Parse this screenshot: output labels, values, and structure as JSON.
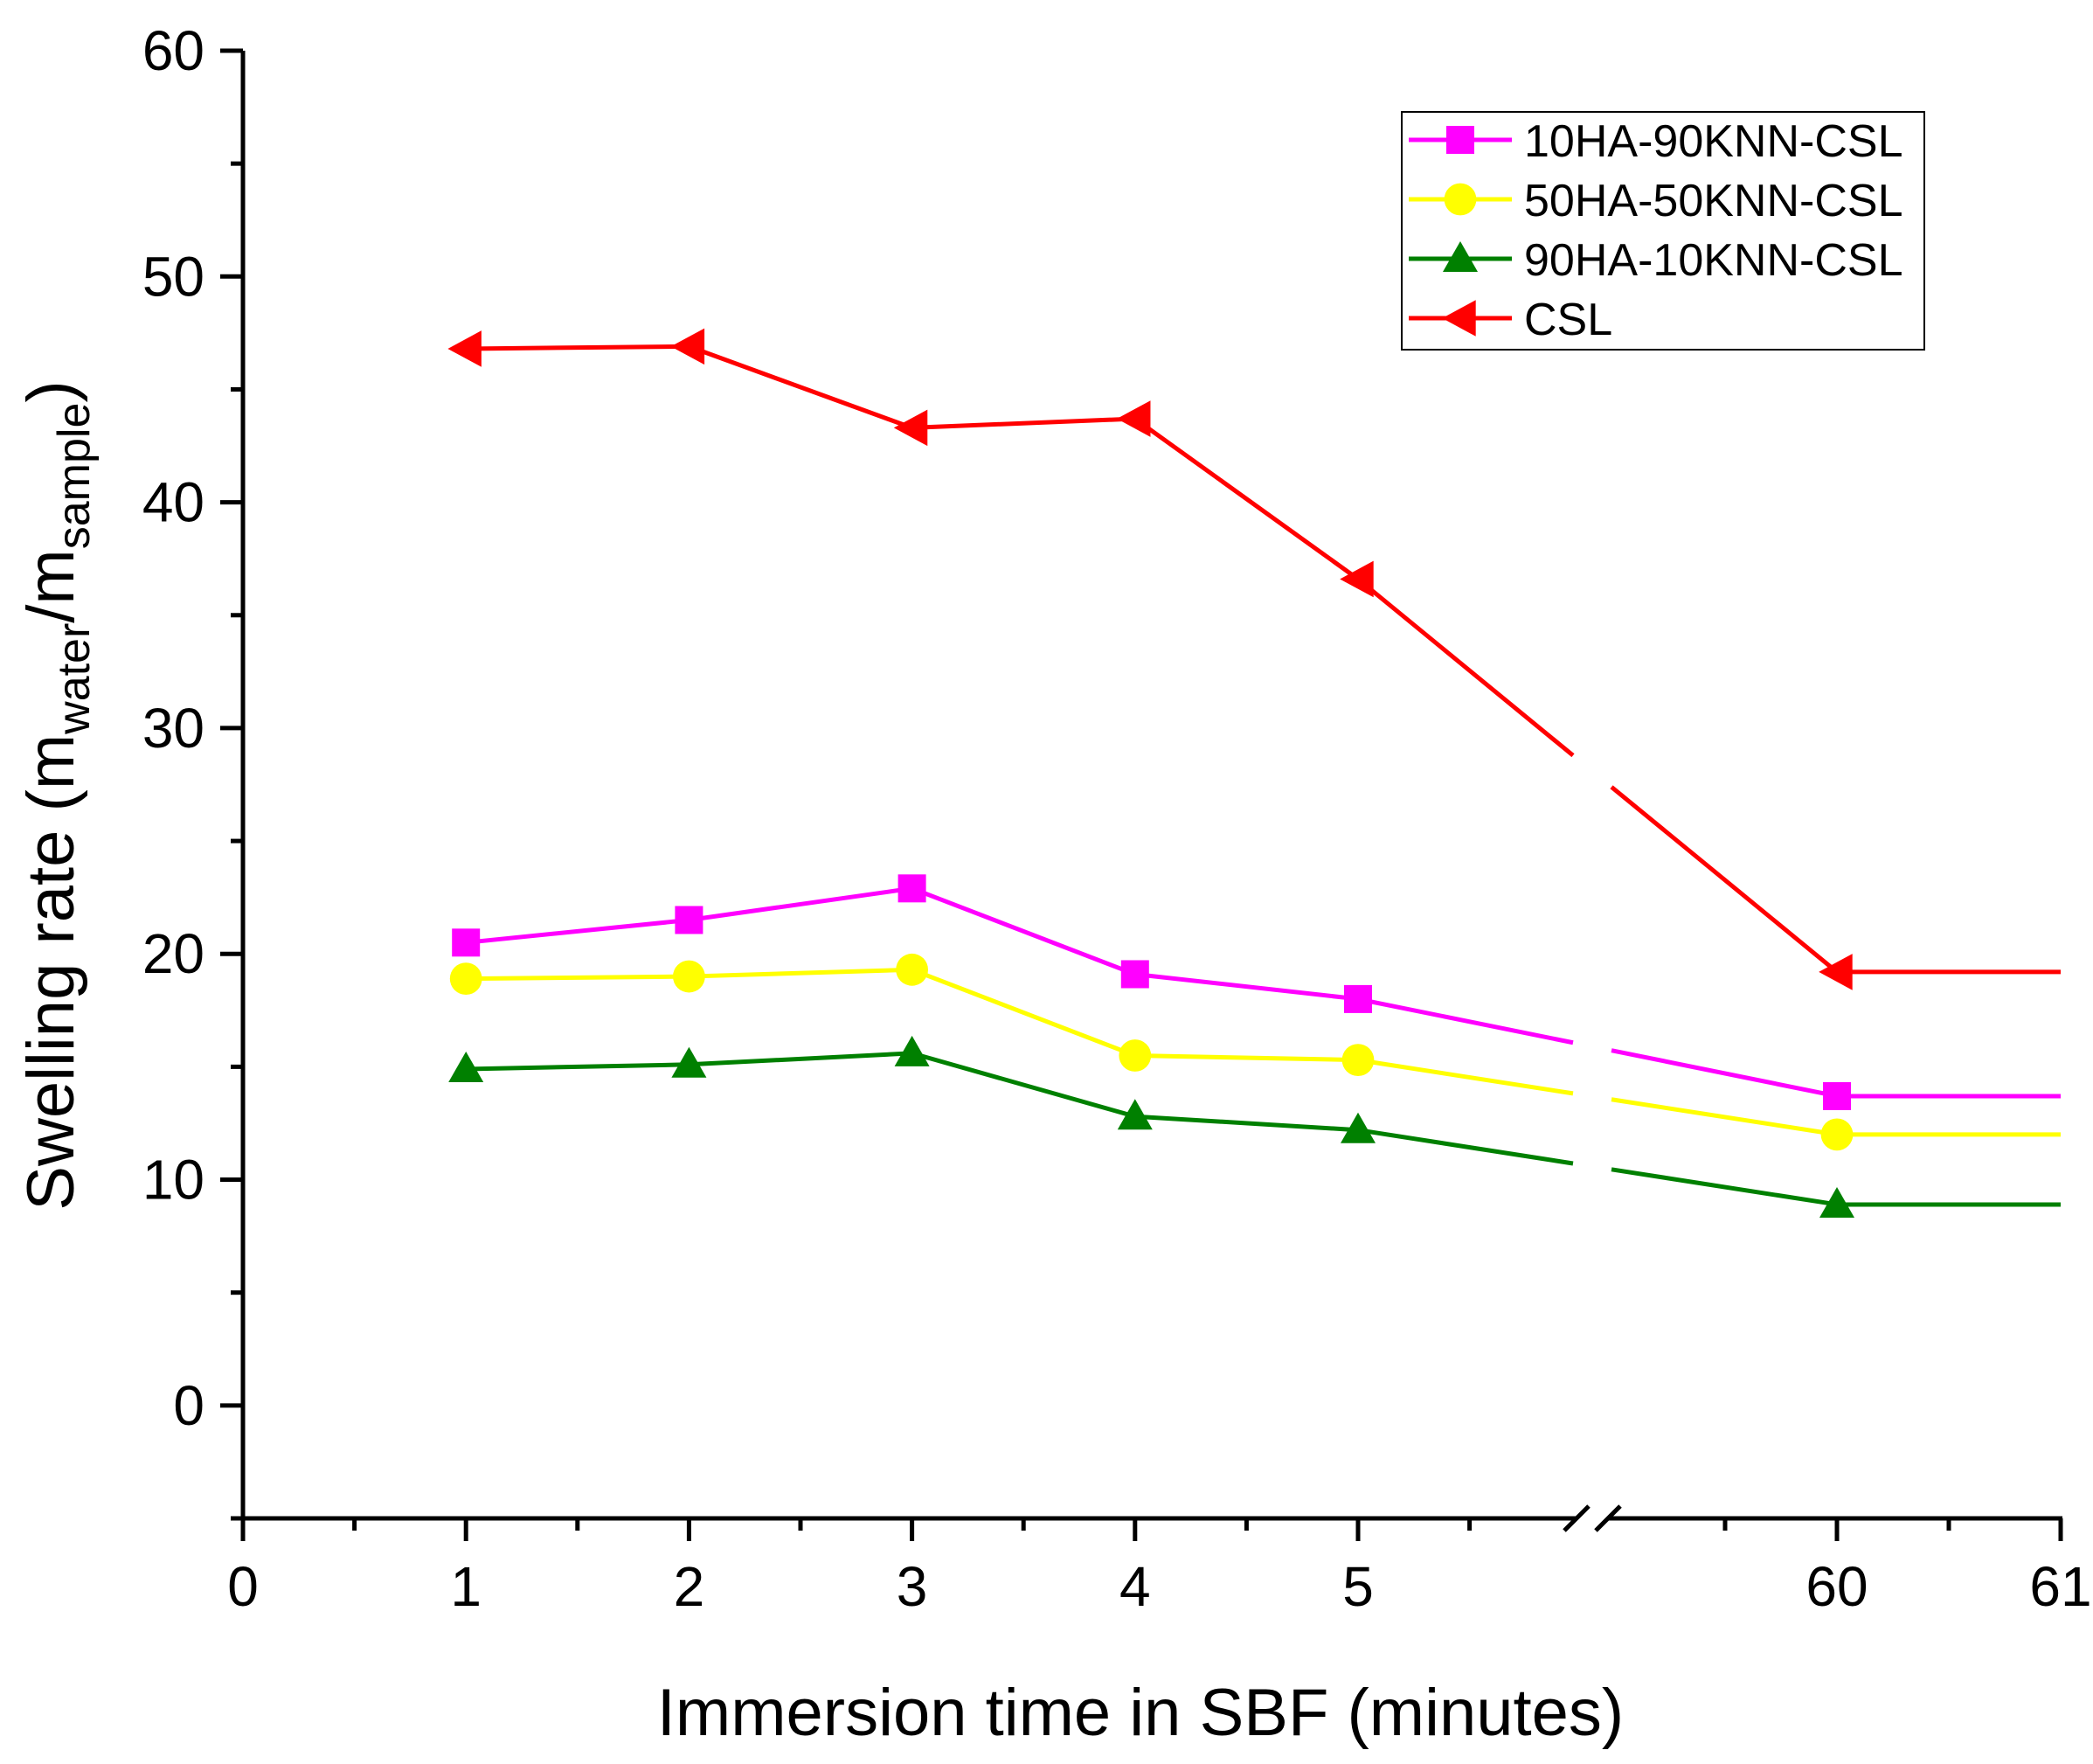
{
  "chart_data": {
    "type": "line",
    "title": "",
    "xlabel": "Immersion time in SBF (minutes)",
    "ylabel": {
      "main": "Swelling rate (m",
      "sub1": "water",
      "mid": "/m",
      "sub2": "sample",
      "end": ")"
    },
    "ylim": [
      -5,
      60
    ],
    "y_ticks": [
      0,
      10,
      20,
      30,
      40,
      50,
      60
    ],
    "x_axis": {
      "segments": [
        {
          "range": [
            0,
            6
          ],
          "ticks": [
            0,
            1,
            2,
            3,
            4,
            5
          ]
        },
        {
          "range": [
            59.1,
            61
          ],
          "ticks": [
            60,
            61
          ]
        }
      ],
      "tick_labels": [
        "0",
        "1",
        "2",
        "3",
        "4",
        "5",
        "60",
        "61"
      ],
      "break_mark": true
    },
    "legend_position": "top-right",
    "series": [
      {
        "name": "10HA-90KNN-CSL",
        "color": "#ff00ff",
        "marker": "square",
        "x": [
          1,
          2,
          3,
          4,
          5,
          60,
          61
        ],
        "y": [
          20.5,
          21.5,
          22.9,
          19.1,
          18.0,
          13.7,
          13.7
        ],
        "marker_count": 6
      },
      {
        "name": "50HA-50KNN-CSL",
        "color": "#ffff00",
        "marker": "circle",
        "x": [
          1,
          2,
          3,
          4,
          5,
          60,
          61
        ],
        "y": [
          18.9,
          19.0,
          19.3,
          15.5,
          15.3,
          12.0,
          12.0
        ],
        "marker_count": 6
      },
      {
        "name": "90HA-10KNN-CSL",
        "color": "#008000",
        "marker": "triangle-up",
        "x": [
          1,
          2,
          3,
          4,
          5,
          60,
          61
        ],
        "y": [
          14.9,
          15.1,
          15.6,
          12.8,
          12.2,
          8.9,
          8.9
        ],
        "marker_count": 6
      },
      {
        "name": "CSL",
        "color": "#ff0000",
        "marker": "triangle-left",
        "x": [
          1,
          2,
          3,
          4,
          5,
          60,
          61
        ],
        "y": [
          46.8,
          46.9,
          43.3,
          43.7,
          36.6,
          19.2,
          19.2
        ],
        "marker_count": 6
      }
    ]
  }
}
